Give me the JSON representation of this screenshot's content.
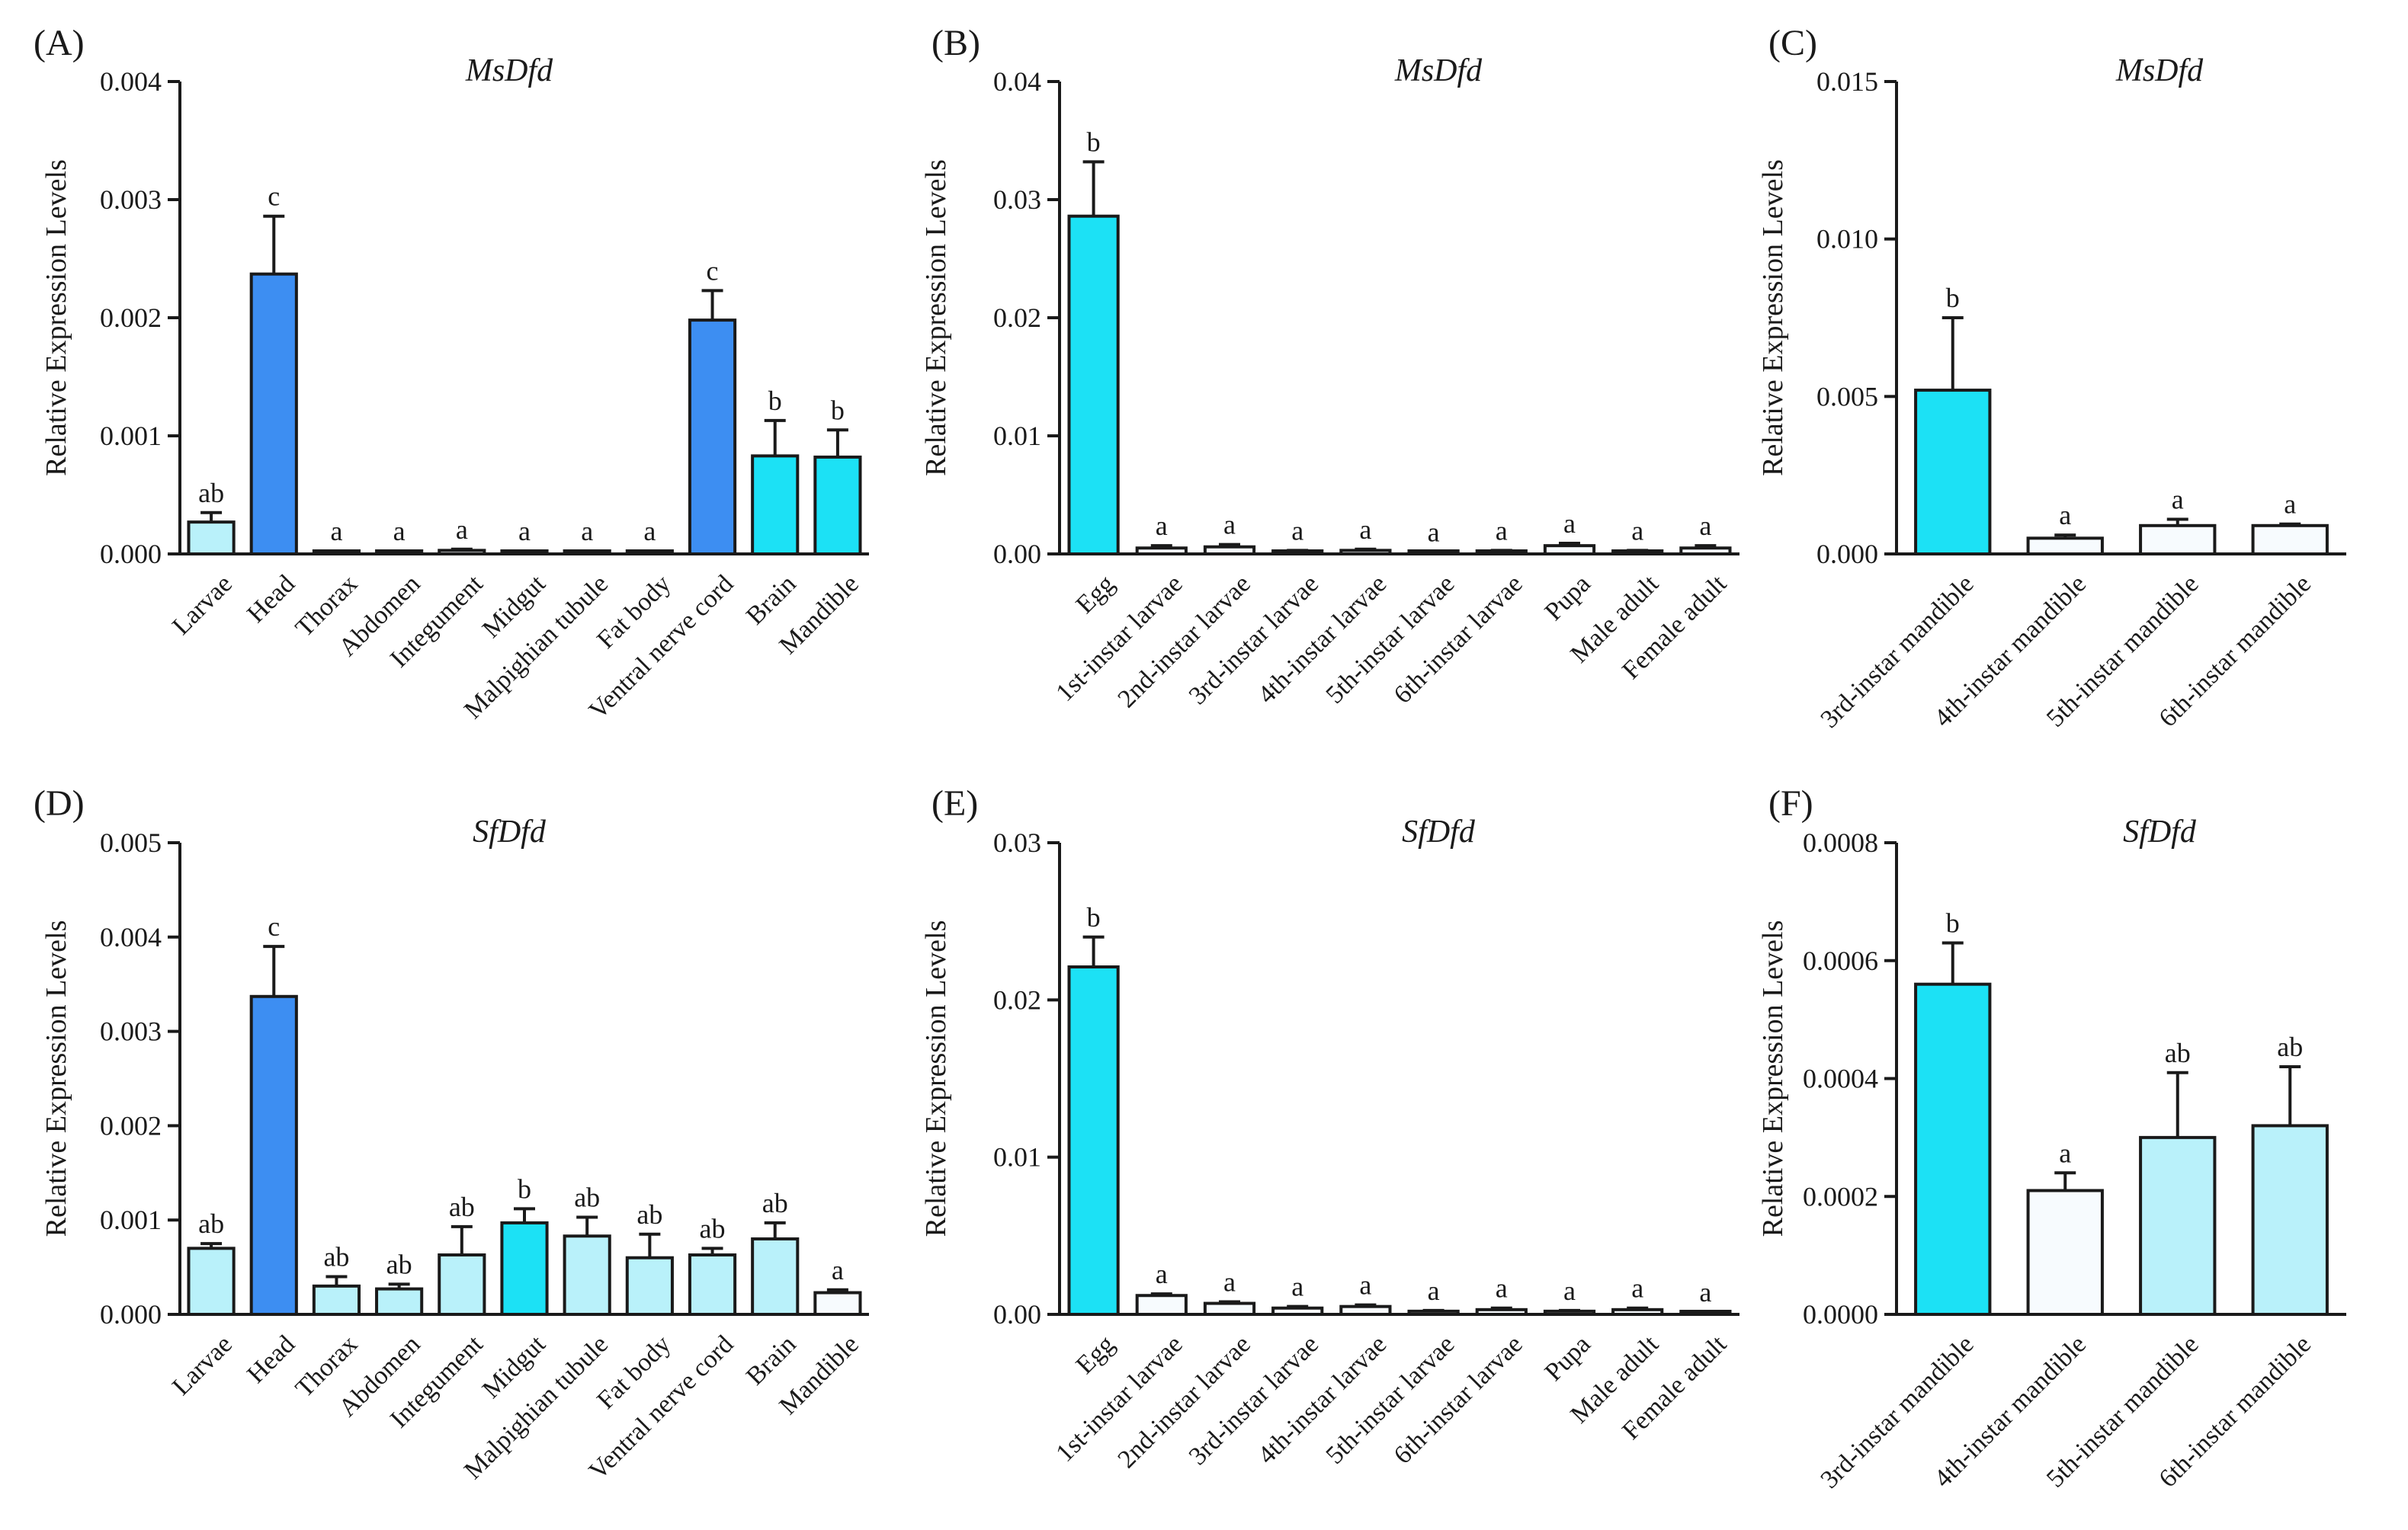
{
  "colors": {
    "dark": "#3D8EF2",
    "bright": "#1CE1F5",
    "light": "#B9F1FA",
    "white": "#F7FBFE",
    "axis": "#1a1a1a"
  },
  "chart_data": [
    {
      "panel": "(A)",
      "title": "MsDfd",
      "type": "bar",
      "ylabel": "Relative Expression Levels",
      "yticks": [
        "0.000",
        "0.001",
        "0.002",
        "0.003",
        "0.004"
      ],
      "ylim": [
        0,
        0.004
      ],
      "categories": [
        "Larvae",
        "Head",
        "Thorax",
        "Abdomen",
        "Integument",
        "Midgut",
        "Malpighian tubule",
        "Fat body",
        "Ventral nerve cord",
        "Brain",
        "Mandible"
      ],
      "values": [
        0.00027,
        0.00237,
        5e-06,
        5e-06,
        3e-05,
        5e-06,
        5e-06,
        5e-06,
        0.00198,
        0.00083,
        0.00082
      ],
      "errors": [
        8e-05,
        0.00049,
        0,
        0,
        1e-05,
        0,
        0,
        0,
        0.00025,
        0.0003,
        0.00023
      ],
      "letters": [
        "ab",
        "c",
        "a",
        "a",
        "a",
        "a",
        "a",
        "a",
        "c",
        "b",
        "b"
      ],
      "fills": [
        "light",
        "dark",
        "white",
        "white",
        "white",
        "white",
        "white",
        "white",
        "dark",
        "bright",
        "bright"
      ]
    },
    {
      "panel": "(B)",
      "title": "MsDfd",
      "type": "bar",
      "ylabel": "Relative Expression Levels",
      "yticks": [
        "0.00",
        "0.01",
        "0.02",
        "0.03",
        "0.04"
      ],
      "ylim": [
        0,
        0.04
      ],
      "categories": [
        "Egg",
        "1st-instar larvae",
        "2nd-instar larvae",
        "3rd-instar larvae",
        "4th-instar larvae",
        "5th-instar larvae",
        "6th-instar larvae",
        "Pupa",
        "Male adult",
        "Female adult"
      ],
      "values": [
        0.0286,
        0.0005,
        0.0006,
        0.0002,
        0.0003,
        0.0001,
        0.0002,
        0.0007,
        0.0002,
        0.0005
      ],
      "errors": [
        0.0046,
        0.0002,
        0.0002,
        0.0001,
        0.0001,
        5e-05,
        0.0001,
        0.0002,
        0.0001,
        0.0002
      ],
      "letters": [
        "b",
        "a",
        "a",
        "a",
        "a",
        "a",
        "a",
        "a",
        "a",
        "a"
      ],
      "fills": [
        "bright",
        "white",
        "white",
        "white",
        "white",
        "white",
        "white",
        "white",
        "white",
        "white"
      ]
    },
    {
      "panel": "(C)",
      "title": "MsDfd",
      "type": "bar",
      "ylabel": "Relative Expression Levels",
      "yticks": [
        "0.000",
        "0.005",
        "0.010",
        "0.015"
      ],
      "ylim": [
        0,
        0.015
      ],
      "categories": [
        "3rd-instar mandible",
        "4th-instar mandible",
        "5th-instar mandible",
        "6th-instar mandible"
      ],
      "values": [
        0.0052,
        0.0005,
        0.0009,
        0.0009
      ],
      "errors": [
        0.0023,
        0.0001,
        0.0002,
        5e-05
      ],
      "letters": [
        "b",
        "a",
        "a",
        "a"
      ],
      "fills": [
        "bright",
        "white",
        "white",
        "white"
      ]
    },
    {
      "panel": "(D)",
      "title": "SfDfd",
      "type": "bar",
      "ylabel": "Relative Expression Levels",
      "yticks": [
        "0.000",
        "0.001",
        "0.002",
        "0.003",
        "0.004",
        "0.005"
      ],
      "ylim": [
        0,
        0.005
      ],
      "categories": [
        "Larvae",
        "Head",
        "Thorax",
        "Abdomen",
        "Integument",
        "Midgut",
        "Malpighian tubule",
        "Fat body",
        "Ventral nerve cord",
        "Brain",
        "Mandible"
      ],
      "values": [
        0.0007,
        0.00337,
        0.0003,
        0.00027,
        0.00063,
        0.00097,
        0.00083,
        0.0006,
        0.00063,
        0.0008,
        0.00023
      ],
      "errors": [
        5e-05,
        0.00053,
        0.0001,
        5e-05,
        0.0003,
        0.00015,
        0.0002,
        0.00025,
        7e-05,
        0.00017,
        3e-05
      ],
      "letters": [
        "ab",
        "c",
        "ab",
        "ab",
        "ab",
        "b",
        "ab",
        "ab",
        "ab",
        "ab",
        "a"
      ],
      "fills": [
        "light",
        "dark",
        "light",
        "light",
        "light",
        "bright",
        "light",
        "light",
        "light",
        "light",
        "white"
      ]
    },
    {
      "panel": "(E)",
      "title": "SfDfd",
      "type": "bar",
      "ylabel": "Relative Expression Levels",
      "yticks": [
        "0.00",
        "0.01",
        "0.02",
        "0.03"
      ],
      "ylim": [
        0,
        0.03
      ],
      "categories": [
        "Egg",
        "1st-instar larvae",
        "2nd-instar larvae",
        "3rd-instar larvae",
        "4th-instar larvae",
        "5th-instar larvae",
        "6th-instar larvae",
        "Pupa",
        "Male adult",
        "Female adult"
      ],
      "values": [
        0.0221,
        0.0012,
        0.0007,
        0.0004,
        0.0005,
        0.0002,
        0.0003,
        0.0002,
        0.0003,
        0.0001
      ],
      "errors": [
        0.0019,
        0.0001,
        0.0001,
        0.0001,
        0.0001,
        5e-05,
        0.0001,
        5e-05,
        0.0001,
        5e-05
      ],
      "letters": [
        "b",
        "a",
        "a",
        "a",
        "a",
        "a",
        "a",
        "a",
        "a",
        "a"
      ],
      "fills": [
        "bright",
        "white",
        "white",
        "white",
        "white",
        "white",
        "white",
        "white",
        "white",
        "white"
      ]
    },
    {
      "panel": "(F)",
      "title": "SfDfd",
      "type": "bar",
      "ylabel": "Relative Expression Levels",
      "yticks": [
        "0.0000",
        "0.0002",
        "0.0004",
        "0.0006",
        "0.0008"
      ],
      "ylim": [
        0,
        0.0008
      ],
      "categories": [
        "3rd-instar mandible",
        "4th-instar mandible",
        "5th-instar mandible",
        "6th-instar mandible"
      ],
      "values": [
        0.00056,
        0.00021,
        0.0003,
        0.00032
      ],
      "errors": [
        7e-05,
        3e-05,
        0.00011,
        0.0001
      ],
      "letters": [
        "b",
        "a",
        "ab",
        "ab"
      ],
      "fills": [
        "bright",
        "white",
        "light",
        "light"
      ]
    }
  ]
}
